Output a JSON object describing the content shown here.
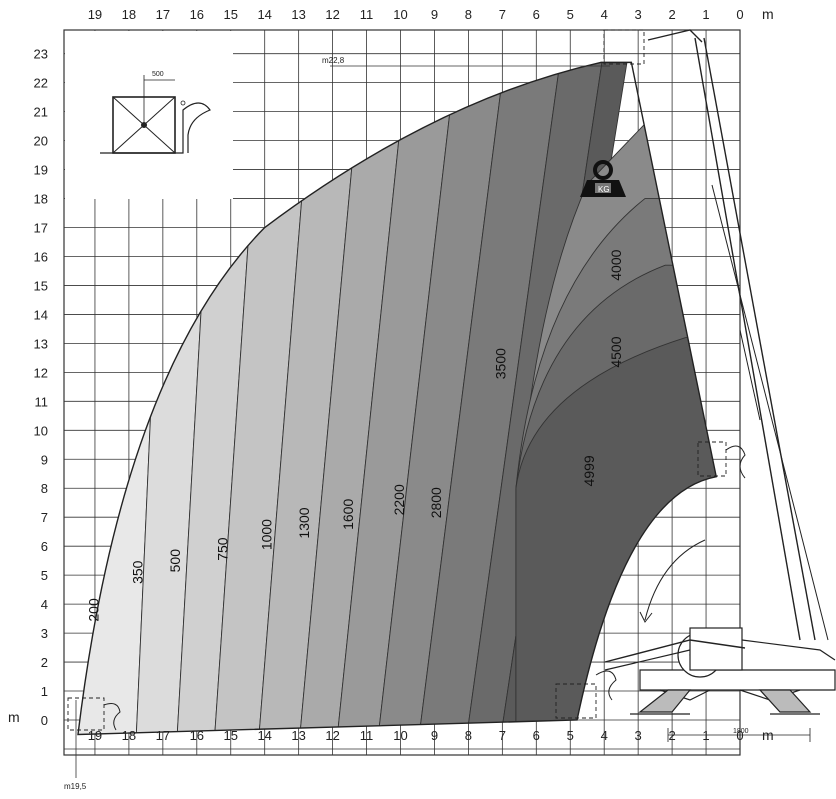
{
  "axis_unit": "m",
  "x_ticks": [
    "19",
    "18",
    "17",
    "16",
    "15",
    "14",
    "13",
    "12",
    "11",
    "10",
    "9",
    "8",
    "7",
    "6",
    "5",
    "4",
    "3",
    "2",
    "1",
    "0"
  ],
  "y_ticks": [
    "23",
    "22",
    "21",
    "20",
    "19",
    "18",
    "17",
    "16",
    "15",
    "14",
    "13",
    "12",
    "11",
    "10",
    "9",
    "8",
    "7",
    "6",
    "5",
    "4",
    "3",
    "2",
    "1",
    "0"
  ],
  "max_height_label": "m22,8",
  "max_reach_label": "m19,5",
  "inset_dimension": "500",
  "weight_icon_label": "KG",
  "bottom_dimension": "1800",
  "zone_labels": [
    {
      "text": "200"
    },
    {
      "text": "350"
    },
    {
      "text": "500"
    },
    {
      "text": "750"
    },
    {
      "text": "1000"
    },
    {
      "text": "1300"
    },
    {
      "text": "1600"
    },
    {
      "text": "2200"
    },
    {
      "text": "2800"
    },
    {
      "text": "3500"
    },
    {
      "text": "4000"
    },
    {
      "text": "4500"
    },
    {
      "text": "4999"
    }
  ],
  "colors": {
    "grid": "#333333",
    "outline": "#222222",
    "zone_shades": [
      "#e8e8e8",
      "#dcdcdc",
      "#d0d0d0",
      "#c4c4c4",
      "#b8b8b8",
      "#aaaaaa",
      "#9a9a9a",
      "#8a8a8a",
      "#7a7a7a",
      "#6a6a6a",
      "#5a5a5a"
    ]
  },
  "icons": [
    "load-weight-icon",
    "platform-inset-icon",
    "telehandler-machine-icon",
    "boom-rotation-arrow-icon"
  ]
}
